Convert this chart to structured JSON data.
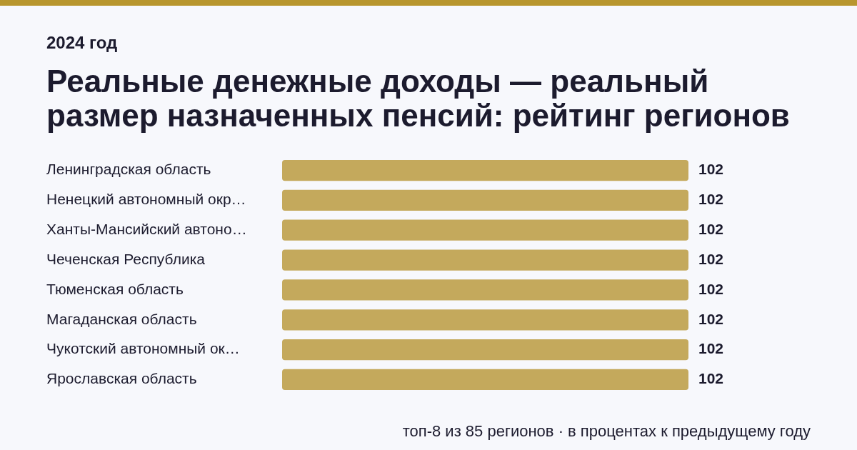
{
  "chart_data": {
    "type": "bar",
    "orientation": "horizontal",
    "title": "Реальные денежные доходы — реальный размер назначенных пенсий: рейтинг регионов",
    "subtitle": "2024 год",
    "categories": [
      "Ленинградская область",
      "Ненецкий автономный окр…",
      "Ханты-Мансийский автоно…",
      "Чеченская Республика",
      "Тюменская область",
      "Магаданская область",
      "Чукотский автономный ок…",
      "Ярославская область"
    ],
    "values": [
      102,
      102,
      102,
      102,
      102,
      102,
      102,
      102
    ],
    "color": "#c4a95c",
    "data_labels": true,
    "annotations": [
      "топ-8 из 85 регионов · в процентах к предыдущему году"
    ]
  }
}
